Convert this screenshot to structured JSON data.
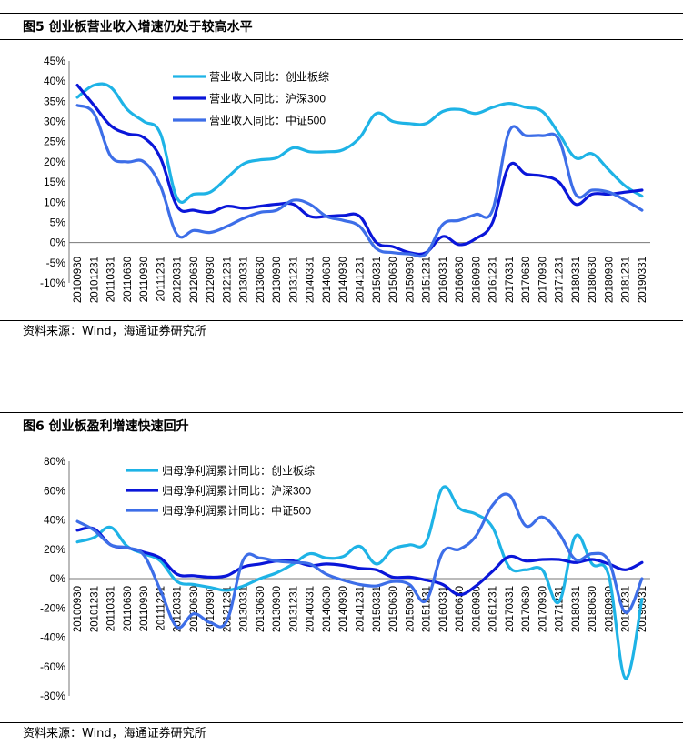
{
  "figures": [
    {
      "title": "图5  创业板营业收入增速仍处于较高水平",
      "source": "资料来源：Wind，海通证券研究所"
    },
    {
      "title": "图6  创业板盈利增速快速回升",
      "source": "资料来源：Wind，海通证券研究所"
    }
  ],
  "chart_data": [
    {
      "type": "line",
      "title": "",
      "xlabel": "",
      "ylabel": "",
      "ylim": [
        -0.1,
        0.45
      ],
      "yticks": [
        "45%",
        "40%",
        "35%",
        "30%",
        "25%",
        "20%",
        "15%",
        "10%",
        "5%",
        "0%",
        "-5%",
        "-10%"
      ],
      "grid": false,
      "legend_position": "top-left",
      "categories": [
        "20100930",
        "20101231",
        "20110331",
        "20110630",
        "20110930",
        "20111231",
        "20120331",
        "20120630",
        "20120930",
        "20121231",
        "20130331",
        "20130630",
        "20130930",
        "20131231",
        "20140331",
        "20140630",
        "20140930",
        "20141231",
        "20150331",
        "20150630",
        "20150930",
        "20151231",
        "20160331",
        "20160630",
        "20160930",
        "20161231",
        "20170331",
        "20170630",
        "20170930",
        "20171231",
        "20180331",
        "20180630",
        "20180930",
        "20181231",
        "20190331"
      ],
      "series": [
        {
          "name": "营业收入同比：创业板综",
          "color": "#1eb3e6",
          "values": [
            0.36,
            0.39,
            0.385,
            0.33,
            0.3,
            0.27,
            0.11,
            0.12,
            0.125,
            0.16,
            0.195,
            0.205,
            0.21,
            0.235,
            0.225,
            0.225,
            0.23,
            0.26,
            0.32,
            0.3,
            0.295,
            0.295,
            0.325,
            0.33,
            0.32,
            0.335,
            0.345,
            0.335,
            0.325,
            0.27,
            0.21,
            0.22,
            0.18,
            0.14,
            0.115
          ]
        },
        {
          "name": "营业收入同比：沪深300",
          "color": "#0a16d9",
          "values": [
            0.39,
            0.34,
            0.29,
            0.27,
            0.26,
            0.21,
            0.09,
            0.08,
            0.075,
            0.09,
            0.085,
            0.09,
            0.095,
            0.095,
            0.065,
            0.065,
            0.067,
            0.065,
            0.0,
            -0.01,
            -0.025,
            -0.025,
            0.015,
            -0.005,
            0.01,
            0.05,
            0.19,
            0.17,
            0.165,
            0.15,
            0.095,
            0.12,
            0.12,
            0.125,
            0.13
          ]
        },
        {
          "name": "营业收入同比：中证500",
          "color": "#3d6ee8",
          "values": [
            0.34,
            0.32,
            0.215,
            0.2,
            0.2,
            0.14,
            0.02,
            0.03,
            0.025,
            0.04,
            0.06,
            0.075,
            0.08,
            0.105,
            0.095,
            0.065,
            0.055,
            0.04,
            -0.015,
            -0.025,
            -0.028,
            -0.028,
            0.045,
            0.055,
            0.07,
            0.08,
            0.275,
            0.265,
            0.265,
            0.255,
            0.12,
            0.13,
            0.125,
            0.105,
            0.08
          ]
        }
      ]
    },
    {
      "type": "line",
      "title": "",
      "xlabel": "",
      "ylabel": "",
      "ylim": [
        -0.8,
        0.8
      ],
      "yticks": [
        "80%",
        "60%",
        "40%",
        "20%",
        "0%",
        "-20%",
        "-40%",
        "-60%",
        "-80%"
      ],
      "grid": false,
      "legend_position": "top-left",
      "categories": [
        "20100930",
        "20101231",
        "20110331",
        "20110630",
        "20110930",
        "20111231",
        "20120331",
        "20120630",
        "20120930",
        "20121231",
        "20130331",
        "20130630",
        "20130930",
        "20131231",
        "20140331",
        "20140630",
        "20140930",
        "20141231",
        "20150331",
        "20150630",
        "20150930",
        "20151231",
        "20160331",
        "20160630",
        "20160930",
        "20161231",
        "20170331",
        "20170630",
        "20170930",
        "20171231",
        "20180331",
        "20180630",
        "20180930",
        "20181231",
        "20190331"
      ],
      "series": [
        {
          "name": "归母净利润累计同比：创业板综",
          "color": "#1eb3e6",
          "values": [
            0.25,
            0.28,
            0.35,
            0.22,
            0.17,
            0.12,
            -0.02,
            -0.04,
            -0.06,
            -0.08,
            -0.05,
            0.0,
            0.04,
            0.1,
            0.17,
            0.14,
            0.15,
            0.22,
            0.1,
            0.2,
            0.23,
            0.25,
            0.62,
            0.48,
            0.44,
            0.35,
            0.08,
            0.06,
            0.06,
            -0.16,
            0.29,
            0.1,
            0.02,
            -0.68,
            -0.14
          ]
        },
        {
          "name": "归母净利润累计同比：沪深300",
          "color": "#0a16d9",
          "values": [
            0.33,
            0.34,
            0.23,
            0.21,
            0.18,
            0.14,
            0.03,
            0.02,
            0.01,
            0.02,
            0.08,
            0.1,
            0.12,
            0.12,
            0.09,
            0.1,
            0.09,
            0.07,
            0.06,
            0.01,
            0.01,
            -0.01,
            -0.04,
            -0.11,
            -0.05,
            0.05,
            0.15,
            0.12,
            0.13,
            0.13,
            0.11,
            0.13,
            0.1,
            0.06,
            0.11
          ]
        },
        {
          "name": "归母净利润累计同比：中证500",
          "color": "#3d6ee8",
          "values": [
            0.39,
            0.33,
            0.23,
            0.21,
            0.16,
            -0.08,
            -0.33,
            -0.24,
            -0.3,
            -0.29,
            0.13,
            0.14,
            0.12,
            0.11,
            0.1,
            0.03,
            -0.01,
            -0.04,
            -0.05,
            -0.02,
            -0.04,
            -0.15,
            0.18,
            0.2,
            0.29,
            0.5,
            0.57,
            0.36,
            0.42,
            0.31,
            0.13,
            0.17,
            0.12,
            -0.23,
            0.0
          ]
        }
      ]
    }
  ]
}
